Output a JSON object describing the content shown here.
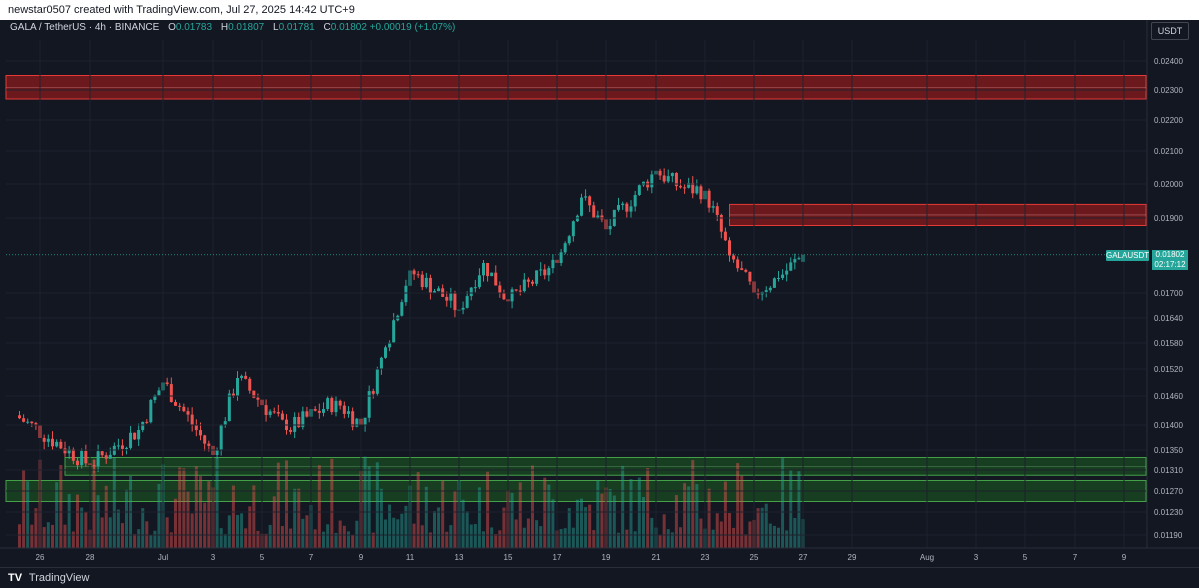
{
  "header": {
    "attribution": "newstar0507 created with TradingView.com, Jul 27, 2025 14:42 UTC+9"
  },
  "legend": {
    "symbol": "GALA / TetherUS · 4h · BINANCE",
    "o_label": "O",
    "o_value": "0.01783",
    "h_label": "H",
    "h_value": "0.01807",
    "l_label": "L",
    "l_value": "0.01781",
    "c_label": "C",
    "c_value": "0.01802",
    "change": "+0.00019 (+1.07%)"
  },
  "currency_button": "USDT",
  "price_tag": {
    "symbol": "GALAUSDT",
    "price": "0.01802",
    "countdown": "02:17:12"
  },
  "footer": {
    "logo": "TV",
    "brand": "TradingView"
  },
  "colors": {
    "background": "#131722",
    "up": "#26a69a",
    "down": "#ef5350",
    "resistance_zone": "#b71c1c",
    "support_zone": "#1b5e20",
    "grid": "#1e222d"
  },
  "chart_data": {
    "type": "candlestick",
    "y_ticks": [
      "0.02400",
      "0.02300",
      "0.02200",
      "0.02100",
      "0.02000",
      "0.01900",
      "0.01700",
      "0.01640",
      "0.01580",
      "0.01520",
      "0.01460",
      "0.01400",
      "0.01350",
      "0.01310",
      "0.01270",
      "0.01230",
      "0.01190"
    ],
    "x_ticks": [
      "26",
      "28",
      "Jul",
      "3",
      "5",
      "7",
      "9",
      "11",
      "13",
      "15",
      "17",
      "19",
      "21",
      "23",
      "25",
      "27",
      "29",
      "Aug",
      "3",
      "5",
      "7",
      "9"
    ],
    "last_price": 0.01802,
    "zones": [
      {
        "kind": "resistance",
        "from": 0.0227,
        "to": 0.0235,
        "start": "left",
        "end": "right"
      },
      {
        "kind": "resistance",
        "from": 0.0188,
        "to": 0.0194,
        "start": "Jul 24",
        "end": "right"
      },
      {
        "kind": "support",
        "from": 0.013,
        "to": 0.01335,
        "start": "Jun 27",
        "end": "right"
      },
      {
        "kind": "support",
        "from": 0.0125,
        "to": 0.0129,
        "start": "left",
        "end": "right"
      }
    ],
    "key_closes": [
      {
        "date": "Jun 25",
        "close": 0.0142
      },
      {
        "date": "Jun 28",
        "close": 0.0132
      },
      {
        "date": "Jun 30",
        "close": 0.0139
      },
      {
        "date": "Jul 1",
        "close": 0.0149
      },
      {
        "date": "Jul 3",
        "close": 0.0134
      },
      {
        "date": "Jul 4",
        "close": 0.015
      },
      {
        "date": "Jul 6",
        "close": 0.0139
      },
      {
        "date": "Jul 8",
        "close": 0.0145
      },
      {
        "date": "Jul 9",
        "close": 0.014
      },
      {
        "date": "Jul 10",
        "close": 0.0157
      },
      {
        "date": "Jul 11",
        "close": 0.0176
      },
      {
        "date": "Jul 13",
        "close": 0.0166
      },
      {
        "date": "Jul 14",
        "close": 0.0178
      },
      {
        "date": "Jul 15",
        "close": 0.0168
      },
      {
        "date": "Jul 17",
        "close": 0.0178
      },
      {
        "date": "Jul 18",
        "close": 0.0196
      },
      {
        "date": "Jul 19",
        "close": 0.0187
      },
      {
        "date": "Jul 21",
        "close": 0.0204
      },
      {
        "date": "Jul 22",
        "close": 0.0199
      },
      {
        "date": "Jul 23",
        "close": 0.0198
      },
      {
        "date": "Jul 24",
        "close": 0.018
      },
      {
        "date": "Jul 25",
        "close": 0.017
      },
      {
        "date": "Jul 26",
        "close": 0.0174
      },
      {
        "date": "Jul 27",
        "close": 0.01802
      }
    ]
  }
}
